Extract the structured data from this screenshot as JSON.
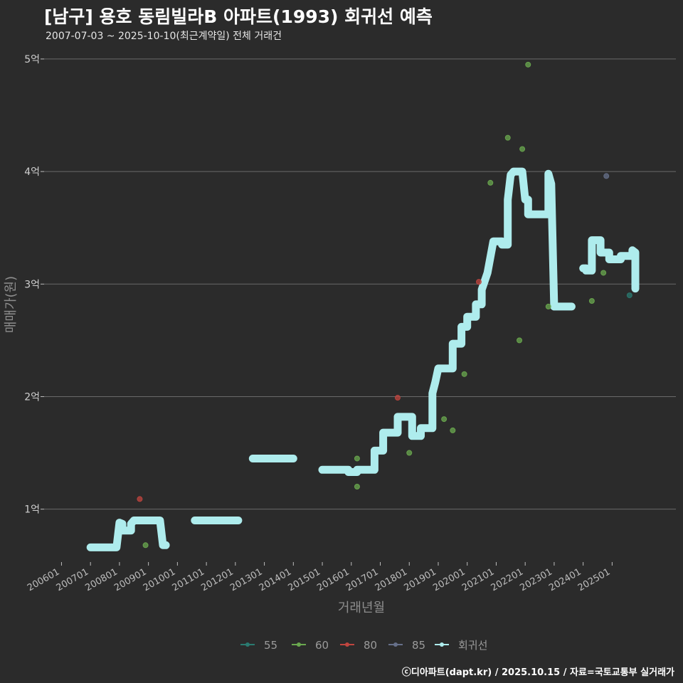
{
  "header": {
    "title": "[남구] 용호 동림빌라B 아파트(1993) 회귀선 예측",
    "subtitle": "2007-07-03 ~ 2025-10-10(최근계약일) 전체 거래건",
    "credit": "ⓒ디아파트(dapt.kr) / 2025.10.15 / 자료=국토교통부 실거래가"
  },
  "colors": {
    "background": "#2b2b2b",
    "grid": "#6a6a6a",
    "regression": "#aeeced",
    "s55": "#2a7a70",
    "s60": "#6aa84f",
    "s80": "#c0453f",
    "s85": "#66708a"
  },
  "chart_data": {
    "type": "scatter",
    "title": "[남구] 용호 동림빌라B 아파트(1993) 회귀선 예측",
    "xlabel": "거래년월",
    "ylabel": "매매가(원)",
    "xlim": [
      2005.4,
      2027.2
    ],
    "ylim": [
      0.53,
      5.05
    ],
    "yticks": [
      {
        "value": 1,
        "label": "1억"
      },
      {
        "value": 2,
        "label": "2억"
      },
      {
        "value": 3,
        "label": "3억"
      },
      {
        "value": 4,
        "label": "4억"
      },
      {
        "value": 5,
        "label": "5억"
      }
    ],
    "xticks": [
      {
        "value": 2006,
        "label": "200601"
      },
      {
        "value": 2007,
        "label": "200701"
      },
      {
        "value": 2008,
        "label": "200801"
      },
      {
        "value": 2009,
        "label": "200901"
      },
      {
        "value": 2010,
        "label": "201001"
      },
      {
        "value": 2011,
        "label": "201101"
      },
      {
        "value": 2012,
        "label": "201201"
      },
      {
        "value": 2013,
        "label": "201301"
      },
      {
        "value": 2014,
        "label": "201401"
      },
      {
        "value": 2015,
        "label": "201501"
      },
      {
        "value": 2016,
        "label": "201601"
      },
      {
        "value": 2017,
        "label": "201701"
      },
      {
        "value": 2018,
        "label": "201801"
      },
      {
        "value": 2019,
        "label": "201901"
      },
      {
        "value": 2020,
        "label": "202001"
      },
      {
        "value": 2021,
        "label": "202101"
      },
      {
        "value": 2022,
        "label": "202201"
      },
      {
        "value": 2023,
        "label": "202301"
      },
      {
        "value": 2024,
        "label": "202401"
      },
      {
        "value": 2025,
        "label": "202501"
      }
    ],
    "legend": [
      {
        "key": "55",
        "label": "55",
        "color": "#2a7a70"
      },
      {
        "key": "60",
        "label": "60",
        "color": "#6aa84f"
      },
      {
        "key": "80",
        "label": "80",
        "color": "#c0453f"
      },
      {
        "key": "85",
        "label": "85",
        "color": "#66708a"
      },
      {
        "key": "reg",
        "label": "회귀선",
        "color": "#aeeced"
      }
    ],
    "series": [
      {
        "name": "55",
        "color": "#2a7a70",
        "points": [
          [
            2025.6,
            2.9
          ]
        ]
      },
      {
        "name": "60",
        "color": "#6aa84f",
        "points": [
          [
            2008.9,
            0.68
          ],
          [
            2016.2,
            1.2
          ],
          [
            2016.2,
            1.45
          ],
          [
            2018.0,
            1.5
          ],
          [
            2019.2,
            1.8
          ],
          [
            2019.5,
            1.7
          ],
          [
            2019.9,
            2.2
          ],
          [
            2020.8,
            3.9
          ],
          [
            2021.4,
            4.3
          ],
          [
            2021.8,
            2.5
          ],
          [
            2022.1,
            4.95
          ],
          [
            2021.9,
            4.2
          ],
          [
            2022.8,
            2.8
          ],
          [
            2024.3,
            2.85
          ],
          [
            2024.7,
            3.1
          ]
        ]
      },
      {
        "name": "80",
        "color": "#c0453f",
        "points": [
          [
            2008.7,
            1.09
          ],
          [
            2017.6,
            1.99
          ],
          [
            2020.4,
            3.02
          ]
        ]
      },
      {
        "name": "85",
        "color": "#66708a",
        "points": [
          [
            2024.8,
            3.96
          ]
        ]
      },
      {
        "name": "회귀선",
        "color": "#aeeced",
        "segments": [
          [
            [
              2007.0,
              0.66
            ],
            [
              2007.9,
              0.66
            ],
            [
              2008.0,
              0.88
            ],
            [
              2008.1,
              0.87
            ],
            [
              2008.1,
              0.81
            ],
            [
              2008.4,
              0.81
            ],
            [
              2008.4,
              0.87
            ],
            [
              2008.5,
              0.9
            ],
            [
              2009.4,
              0.9
            ],
            [
              2009.5,
              0.68
            ],
            [
              2009.6,
              0.68
            ]
          ],
          [
            [
              2010.6,
              0.9
            ],
            [
              2012.1,
              0.9
            ]
          ],
          [
            [
              2012.6,
              1.45
            ],
            [
              2014.0,
              1.45
            ]
          ],
          [
            [
              2015.0,
              1.35
            ],
            [
              2015.9,
              1.35
            ],
            [
              2015.9,
              1.33
            ],
            [
              2016.2,
              1.33
            ],
            [
              2016.2,
              1.35
            ],
            [
              2016.8,
              1.35
            ],
            [
              2016.8,
              1.52
            ],
            [
              2017.1,
              1.52
            ],
            [
              2017.1,
              1.68
            ],
            [
              2017.6,
              1.68
            ],
            [
              2017.6,
              1.82
            ],
            [
              2018.1,
              1.82
            ],
            [
              2018.1,
              1.65
            ],
            [
              2018.4,
              1.65
            ],
            [
              2018.4,
              1.72
            ],
            [
              2018.8,
              1.72
            ],
            [
              2018.8,
              2.03
            ],
            [
              2018.9,
              2.13
            ],
            [
              2019.0,
              2.25
            ],
            [
              2019.5,
              2.25
            ],
            [
              2019.5,
              2.47
            ],
            [
              2019.8,
              2.47
            ],
            [
              2019.8,
              2.62
            ],
            [
              2020.0,
              2.62
            ],
            [
              2020.0,
              2.71
            ],
            [
              2020.3,
              2.71
            ],
            [
              2020.3,
              2.82
            ],
            [
              2020.5,
              2.82
            ],
            [
              2020.5,
              2.95
            ],
            [
              2020.7,
              3.1
            ],
            [
              2020.9,
              3.38
            ],
            [
              2021.2,
              3.38
            ],
            [
              2021.2,
              3.35
            ],
            [
              2021.4,
              3.35
            ],
            [
              2021.4,
              3.75
            ],
            [
              2021.5,
              3.97
            ],
            [
              2021.6,
              4.0
            ],
            [
              2021.9,
              4.0
            ],
            [
              2022.0,
              3.75
            ],
            [
              2022.1,
              3.75
            ],
            [
              2022.1,
              3.62
            ],
            [
              2022.8,
              3.62
            ],
            [
              2022.8,
              3.98
            ],
            [
              2022.9,
              3.89
            ],
            [
              2023.0,
              2.8
            ],
            [
              2023.6,
              2.8
            ]
          ],
          [
            [
              2024.0,
              3.14
            ],
            [
              2024.1,
              3.14
            ],
            [
              2024.1,
              3.12
            ],
            [
              2024.3,
              3.12
            ],
            [
              2024.3,
              3.39
            ],
            [
              2024.6,
              3.39
            ],
            [
              2024.6,
              3.28
            ],
            [
              2024.9,
              3.28
            ],
            [
              2024.9,
              3.22
            ],
            [
              2025.3,
              3.22
            ],
            [
              2025.3,
              3.25
            ],
            [
              2025.7,
              3.25
            ],
            [
              2025.7,
              3.3
            ],
            [
              2025.8,
              3.28
            ],
            [
              2025.8,
              2.96
            ]
          ]
        ]
      }
    ]
  }
}
